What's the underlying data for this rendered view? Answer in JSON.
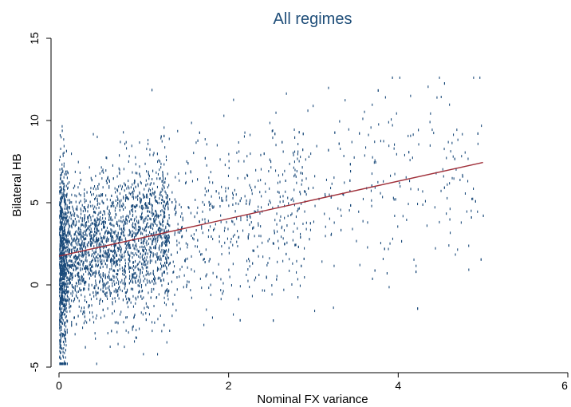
{
  "chart_data": {
    "type": "scatter",
    "title": "All regimes",
    "xlabel": "Nominal FX variance",
    "ylabel": "Bilateral HB",
    "xlim": [
      0,
      6
    ],
    "ylim": [
      -5,
      15
    ],
    "xticks": [
      0,
      2,
      4,
      6
    ],
    "yticks": [
      -5,
      0,
      5,
      10,
      15
    ],
    "grid": false,
    "legend": "none",
    "colors": {
      "points": "#1a4a7a",
      "fit_line": "#a0303a",
      "title": "#1f4e79"
    },
    "point_generation": {
      "count": 4200,
      "x_cluster": "dense 0-1.3, sparse to 5.0",
      "y_relation": "y ≈ 1.7 + 1.15x with noise (sd ≈ 2.2)"
    },
    "fit_line": {
      "x": [
        0,
        5
      ],
      "y": [
        1.75,
        7.45
      ]
    }
  }
}
